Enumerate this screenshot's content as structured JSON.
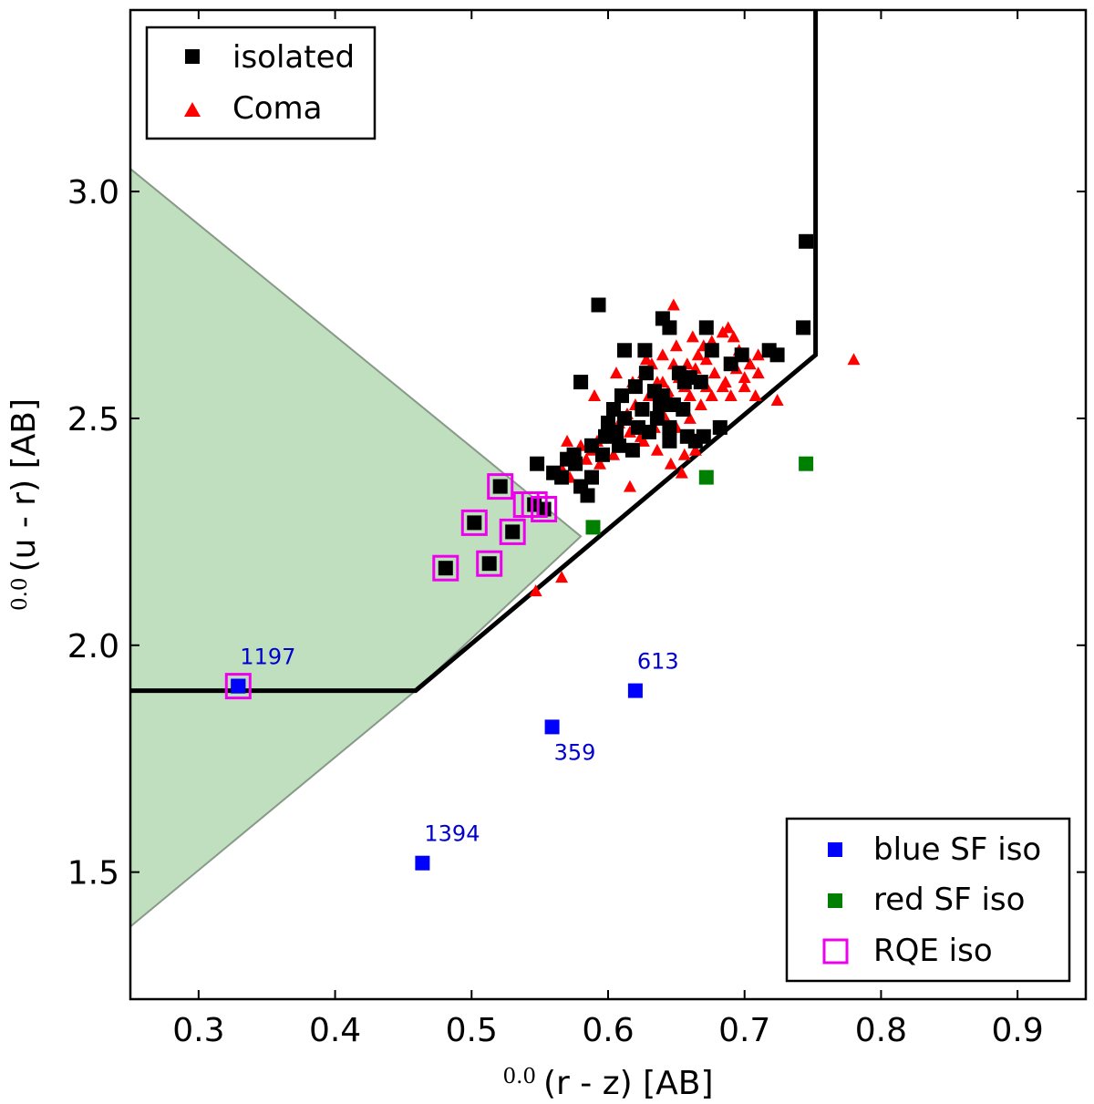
{
  "chart_data": {
    "type": "scatter",
    "title": "",
    "xlabel": {
      "superscript": "0.0",
      "text": "(r - z) [AB]"
    },
    "ylabel": {
      "superscript": "0.0",
      "text": "(u - r) [AB]"
    },
    "xlim": [
      0.25,
      0.95
    ],
    "ylim": [
      1.22,
      3.4
    ],
    "x_ticks": [
      0.3,
      0.4,
      0.5,
      0.6,
      0.7,
      0.8,
      0.9
    ],
    "x_tick_labels": [
      "0.3",
      "0.4",
      "0.5",
      "0.6",
      "0.7",
      "0.8",
      "0.9"
    ],
    "y_ticks": [
      1.5,
      2.0,
      2.5,
      3.0
    ],
    "y_tick_labels": [
      "1.5",
      "2.0",
      "2.5",
      "3.0"
    ],
    "grid": false,
    "colors": {
      "isolated": "#000000",
      "coma": "#ff0000",
      "blue_sf": "#0000ff",
      "red_sf": "#008000",
      "rqe": "#ee00ee",
      "region": "#a9d4a9",
      "region_edge": "#889988",
      "annotation": "#0000cc"
    },
    "shaded_region": {
      "name": "green wedge",
      "polygon": [
        [
          0.25,
          3.05
        ],
        [
          0.58,
          2.24
        ],
        [
          0.459,
          1.9
        ],
        [
          0.25,
          1.38
        ]
      ]
    },
    "boundary_line": {
      "points": [
        [
          0.25,
          1.9
        ],
        [
          0.459,
          1.9
        ],
        [
          0.752,
          2.64
        ],
        [
          0.752,
          3.4
        ]
      ]
    },
    "legends": [
      {
        "position": "top-left",
        "entries": [
          {
            "label": "isolated",
            "marker": "square",
            "color": "#000000"
          },
          {
            "label": "Coma",
            "marker": "triangle",
            "color": "#ff0000"
          }
        ]
      },
      {
        "position": "bottom-right",
        "entries": [
          {
            "label": "blue SF iso",
            "marker": "square",
            "color": "#0000ff"
          },
          {
            "label": "red SF iso",
            "marker": "square",
            "color": "#008000"
          },
          {
            "label": "RQE iso",
            "marker": "open-square",
            "color": "#ee00ee"
          }
        ]
      }
    ],
    "series": [
      {
        "name": "isolated",
        "marker": "square",
        "color": "#000000",
        "points": [
          [
            0.745,
            2.89
          ],
          [
            0.743,
            2.7
          ],
          [
            0.593,
            2.75
          ],
          [
            0.64,
            2.72
          ],
          [
            0.645,
            2.7
          ],
          [
            0.672,
            2.7
          ],
          [
            0.676,
            2.65
          ],
          [
            0.612,
            2.65
          ],
          [
            0.627,
            2.65
          ],
          [
            0.698,
            2.64
          ],
          [
            0.718,
            2.65
          ],
          [
            0.724,
            2.64
          ],
          [
            0.58,
            2.58
          ],
          [
            0.656,
            2.58
          ],
          [
            0.66,
            2.59
          ],
          [
            0.668,
            2.58
          ],
          [
            0.61,
            2.55
          ],
          [
            0.62,
            2.57
          ],
          [
            0.634,
            2.56
          ],
          [
            0.638,
            2.53
          ],
          [
            0.604,
            2.52
          ],
          [
            0.612,
            2.5
          ],
          [
            0.622,
            2.48
          ],
          [
            0.636,
            2.5
          ],
          [
            0.648,
            2.53
          ],
          [
            0.655,
            2.52
          ],
          [
            0.6,
            2.49
          ],
          [
            0.598,
            2.46
          ],
          [
            0.608,
            2.44
          ],
          [
            0.618,
            2.43
          ],
          [
            0.596,
            2.42
          ],
          [
            0.588,
            2.44
          ],
          [
            0.575,
            2.42
          ],
          [
            0.57,
            2.41
          ],
          [
            0.566,
            2.37
          ],
          [
            0.58,
            2.35
          ],
          [
            0.585,
            2.33
          ],
          [
            0.548,
            2.4
          ],
          [
            0.56,
            2.38
          ],
          [
            0.576,
            2.4
          ],
          [
            0.658,
            2.46
          ],
          [
            0.67,
            2.46
          ],
          [
            0.664,
            2.45
          ],
          [
            0.682,
            2.48
          ],
          [
            0.645,
            2.48
          ],
          [
            0.63,
            2.47
          ],
          [
            0.64,
            2.55
          ],
          [
            0.625,
            2.52
          ],
          [
            0.645,
            2.45
          ],
          [
            0.606,
            2.47
          ],
          [
            0.588,
            2.37
          ],
          [
            0.628,
            2.6
          ],
          [
            0.652,
            2.6
          ],
          [
            0.69,
            2.62
          ],
          [
            0.521,
            2.35
          ],
          [
            0.546,
            2.31
          ],
          [
            0.553,
            2.3
          ],
          [
            0.502,
            2.27
          ],
          [
            0.53,
            2.25
          ],
          [
            0.513,
            2.18
          ],
          [
            0.481,
            2.17
          ],
          [
            0.329,
            1.91
          ]
        ]
      },
      {
        "name": "Coma",
        "marker": "triangle",
        "color": "#ff0000",
        "points": [
          [
            0.648,
            2.75
          ],
          [
            0.78,
            2.63
          ],
          [
            0.688,
            2.7
          ],
          [
            0.692,
            2.68
          ],
          [
            0.684,
            2.69
          ],
          [
            0.67,
            2.66
          ],
          [
            0.662,
            2.68
          ],
          [
            0.65,
            2.66
          ],
          [
            0.64,
            2.64
          ],
          [
            0.632,
            2.62
          ],
          [
            0.626,
            2.6
          ],
          [
            0.636,
            2.58
          ],
          [
            0.644,
            2.56
          ],
          [
            0.652,
            2.59
          ],
          [
            0.658,
            2.62
          ],
          [
            0.664,
            2.61
          ],
          [
            0.672,
            2.63
          ],
          [
            0.678,
            2.6
          ],
          [
            0.686,
            2.58
          ],
          [
            0.694,
            2.61
          ],
          [
            0.7,
            2.59
          ],
          [
            0.71,
            2.64
          ],
          [
            0.696,
            2.65
          ],
          [
            0.676,
            2.67
          ],
          [
            0.666,
            2.64
          ],
          [
            0.656,
            2.57
          ],
          [
            0.646,
            2.54
          ],
          [
            0.638,
            2.52
          ],
          [
            0.63,
            2.55
          ],
          [
            0.62,
            2.53
          ],
          [
            0.614,
            2.51
          ],
          [
            0.608,
            2.49
          ],
          [
            0.616,
            2.47
          ],
          [
            0.624,
            2.46
          ],
          [
            0.634,
            2.48
          ],
          [
            0.642,
            2.5
          ],
          [
            0.65,
            2.48
          ],
          [
            0.66,
            2.5
          ],
          [
            0.668,
            2.53
          ],
          [
            0.676,
            2.55
          ],
          [
            0.684,
            2.57
          ],
          [
            0.69,
            2.55
          ],
          [
            0.7,
            2.57
          ],
          [
            0.71,
            2.6
          ],
          [
            0.704,
            2.62
          ],
          [
            0.724,
            2.54
          ],
          [
            0.708,
            2.55
          ],
          [
            0.598,
            2.47
          ],
          [
            0.592,
            2.45
          ],
          [
            0.588,
            2.43
          ],
          [
            0.584,
            2.41
          ],
          [
            0.594,
            2.4
          ],
          [
            0.604,
            2.42
          ],
          [
            0.612,
            2.44
          ],
          [
            0.57,
            2.45
          ],
          [
            0.566,
            2.39
          ],
          [
            0.572,
            2.37
          ],
          [
            0.58,
            2.44
          ],
          [
            0.59,
            2.55
          ],
          [
            0.606,
            2.6
          ],
          [
            0.618,
            2.58
          ],
          [
            0.628,
            2.63
          ],
          [
            0.626,
            2.45
          ],
          [
            0.636,
            2.43
          ],
          [
            0.646,
            2.4
          ],
          [
            0.656,
            2.42
          ],
          [
            0.664,
            2.43
          ],
          [
            0.654,
            2.38
          ],
          [
            0.616,
            2.35
          ],
          [
            0.566,
            2.15
          ],
          [
            0.547,
            2.12
          ],
          [
            0.64,
            2.58
          ],
          [
            0.66,
            2.55
          ],
          [
            0.672,
            2.57
          ],
          [
            0.648,
            2.62
          ]
        ]
      },
      {
        "name": "blue SF iso",
        "marker": "square",
        "color": "#0000ff",
        "points": [
          [
            0.329,
            1.91
          ],
          [
            0.62,
            1.9
          ],
          [
            0.559,
            1.82
          ],
          [
            0.464,
            1.52
          ]
        ]
      },
      {
        "name": "red SF iso",
        "marker": "square",
        "color": "#008000",
        "points": [
          [
            0.745,
            2.4
          ],
          [
            0.672,
            2.37
          ],
          [
            0.589,
            2.26
          ]
        ]
      },
      {
        "name": "RQE iso",
        "marker": "open-square",
        "color": "#ee00ee",
        "points": [
          [
            0.521,
            2.35
          ],
          [
            0.54,
            2.31
          ],
          [
            0.546,
            2.31
          ],
          [
            0.553,
            2.3
          ],
          [
            0.502,
            2.27
          ],
          [
            0.53,
            2.25
          ],
          [
            0.513,
            2.18
          ],
          [
            0.481,
            2.17
          ],
          [
            0.329,
            1.91
          ]
        ]
      }
    ],
    "annotations": [
      {
        "text": "1197",
        "x": 0.329,
        "y": 1.91,
        "placement": "above-right"
      },
      {
        "text": "613",
        "x": 0.62,
        "y": 1.9,
        "placement": "above-right"
      },
      {
        "text": "359",
        "x": 0.559,
        "y": 1.82,
        "placement": "below-right"
      },
      {
        "text": "1394",
        "x": 0.464,
        "y": 1.52,
        "placement": "above-right"
      }
    ]
  }
}
